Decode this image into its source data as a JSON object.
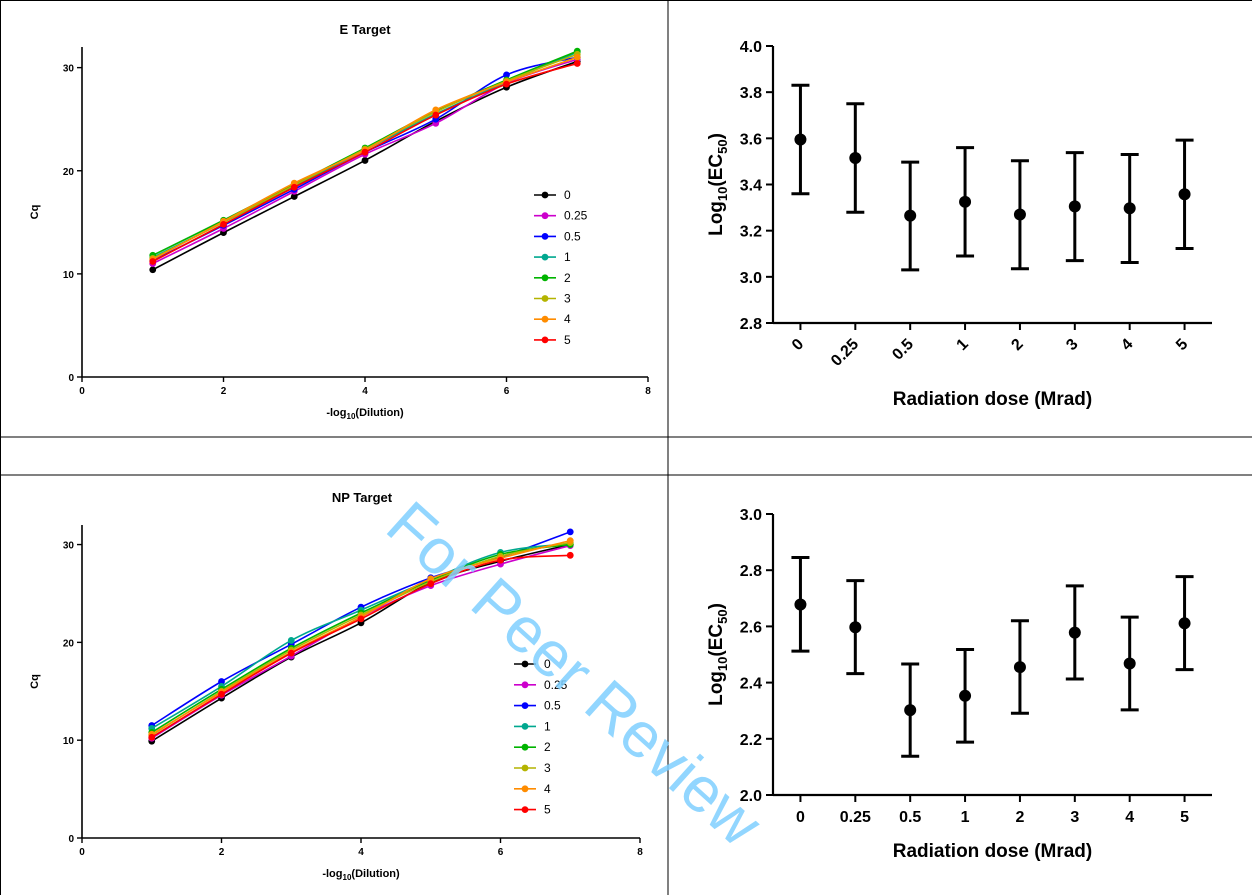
{
  "watermark": "For Peer Review",
  "colors": {
    "0": "#000000",
    "0.25": "#cc00cc",
    "0.5": "#0000ff",
    "1": "#00a88f",
    "2": "#00b400",
    "3": "#b4b400",
    "4": "#ff8c00",
    "5": "#ff0000",
    "watermark": "#7fd0ff"
  },
  "chart_data": [
    {
      "type": "scatter",
      "title": "E Target",
      "xlabel_main": "-log",
      "xlabel_sub": "10",
      "xlabel_tail": "(Dilution)",
      "ylabel": "Cq",
      "xlim": [
        0,
        8
      ],
      "ylim": [
        0,
        32
      ],
      "xticks": [
        "0",
        "2",
        "4",
        "6",
        "8"
      ],
      "yticks": [
        "0",
        "10",
        "20",
        "30"
      ],
      "x": [
        1,
        2,
        3,
        4,
        5,
        6,
        7
      ],
      "series": [
        {
          "name": "0",
          "values": [
            10.4,
            14.0,
            17.5,
            21.0,
            24.8,
            28.1,
            30.6
          ]
        },
        {
          "name": "0.25",
          "values": [
            11.0,
            14.4,
            18.0,
            21.6,
            24.6,
            28.5,
            30.8
          ]
        },
        {
          "name": "0.5",
          "values": [
            11.3,
            14.7,
            18.2,
            21.8,
            25.0,
            29.3,
            31.0
          ]
        },
        {
          "name": "1",
          "values": [
            11.6,
            15.0,
            18.5,
            22.0,
            25.5,
            28.6,
            31.5
          ]
        },
        {
          "name": "2",
          "values": [
            11.8,
            15.2,
            18.7,
            22.2,
            25.8,
            28.8,
            31.6
          ]
        },
        {
          "name": "3",
          "values": [
            11.5,
            15.0,
            18.6,
            22.1,
            25.7,
            28.7,
            31.3
          ]
        },
        {
          "name": "4",
          "values": [
            11.4,
            15.1,
            18.8,
            22.0,
            25.9,
            28.6,
            31.0
          ]
        },
        {
          "name": "5",
          "values": [
            11.2,
            14.8,
            18.4,
            21.8,
            25.4,
            28.4,
            30.4
          ]
        }
      ]
    },
    {
      "type": "errorbar",
      "ylabel_main": "Log",
      "ylabel_sub": "10",
      "ylabel_mid": "(EC",
      "ylabel_sub2": "50",
      "ylabel_tail": ")",
      "xlabel": "Radiation dose (Mrad)",
      "ylim": [
        2.8,
        4.0
      ],
      "yticks": [
        "2.8",
        "3.0",
        "3.2",
        "3.4",
        "3.6",
        "3.8",
        "4.0"
      ],
      "categories": [
        "0",
        "0.25",
        "0.5",
        "1",
        "2",
        "3",
        "4",
        "5"
      ],
      "tick_rotation": "diagonal",
      "values": [
        3.595,
        3.515,
        3.265,
        3.325,
        3.27,
        3.305,
        3.297,
        3.358
      ],
      "err_low": [
        3.36,
        3.28,
        3.03,
        3.09,
        3.035,
        3.07,
        3.062,
        3.123
      ],
      "err_high": [
        3.83,
        3.75,
        3.497,
        3.56,
        3.503,
        3.538,
        3.53,
        3.592
      ]
    },
    {
      "type": "scatter",
      "title": "NP Target",
      "xlabel_main": "-log",
      "xlabel_sub": "10",
      "xlabel_tail": "(Dilution)",
      "ylabel": "Cq",
      "xlim": [
        0,
        8
      ],
      "ylim": [
        0,
        32
      ],
      "xticks": [
        "0",
        "2",
        "4",
        "6",
        "8"
      ],
      "yticks": [
        "0",
        "10",
        "20",
        "30"
      ],
      "x": [
        1,
        2,
        3,
        4,
        5,
        6,
        7
      ],
      "series": [
        {
          "name": "0",
          "values": [
            9.9,
            14.3,
            18.5,
            22.0,
            26.1,
            28.3,
            30.0
          ]
        },
        {
          "name": "0.25",
          "values": [
            10.2,
            14.6,
            18.6,
            22.6,
            25.8,
            28.0,
            29.9
          ]
        },
        {
          "name": "0.5",
          "values": [
            11.5,
            16.0,
            19.8,
            23.6,
            26.6,
            28.7,
            31.3
          ]
        },
        {
          "name": "1",
          "values": [
            11.2,
            15.5,
            20.2,
            23.3,
            26.4,
            29.2,
            30.1
          ]
        },
        {
          "name": "2",
          "values": [
            10.8,
            15.2,
            19.4,
            23.0,
            26.3,
            29.0,
            30.0
          ]
        },
        {
          "name": "3",
          "values": [
            10.5,
            15.0,
            19.2,
            22.8,
            26.2,
            28.8,
            30.2
          ]
        },
        {
          "name": "4",
          "values": [
            10.6,
            14.9,
            19.0,
            22.6,
            26.5,
            28.6,
            30.4
          ]
        },
        {
          "name": "5",
          "values": [
            10.3,
            14.7,
            18.9,
            22.4,
            26.0,
            28.4,
            28.9
          ]
        }
      ]
    },
    {
      "type": "errorbar",
      "ylabel_main": "Log",
      "ylabel_sub": "10",
      "ylabel_mid": "(EC",
      "ylabel_sub2": "50",
      "ylabel_tail": ")",
      "xlabel": "Radiation dose (Mrad)",
      "ylim": [
        2.0,
        3.0
      ],
      "yticks": [
        "2.0",
        "2.2",
        "2.4",
        "2.6",
        "2.8",
        "3.0"
      ],
      "categories": [
        "0",
        "0.25",
        "0.5",
        "1",
        "2",
        "3",
        "4",
        "5"
      ],
      "tick_rotation": "none",
      "values": [
        2.678,
        2.597,
        2.302,
        2.353,
        2.455,
        2.578,
        2.468,
        2.611
      ],
      "err_low": [
        2.512,
        2.432,
        2.138,
        2.188,
        2.291,
        2.413,
        2.303,
        2.446
      ],
      "err_high": [
        2.845,
        2.763,
        2.466,
        2.518,
        2.62,
        2.744,
        2.633,
        2.777
      ]
    }
  ]
}
